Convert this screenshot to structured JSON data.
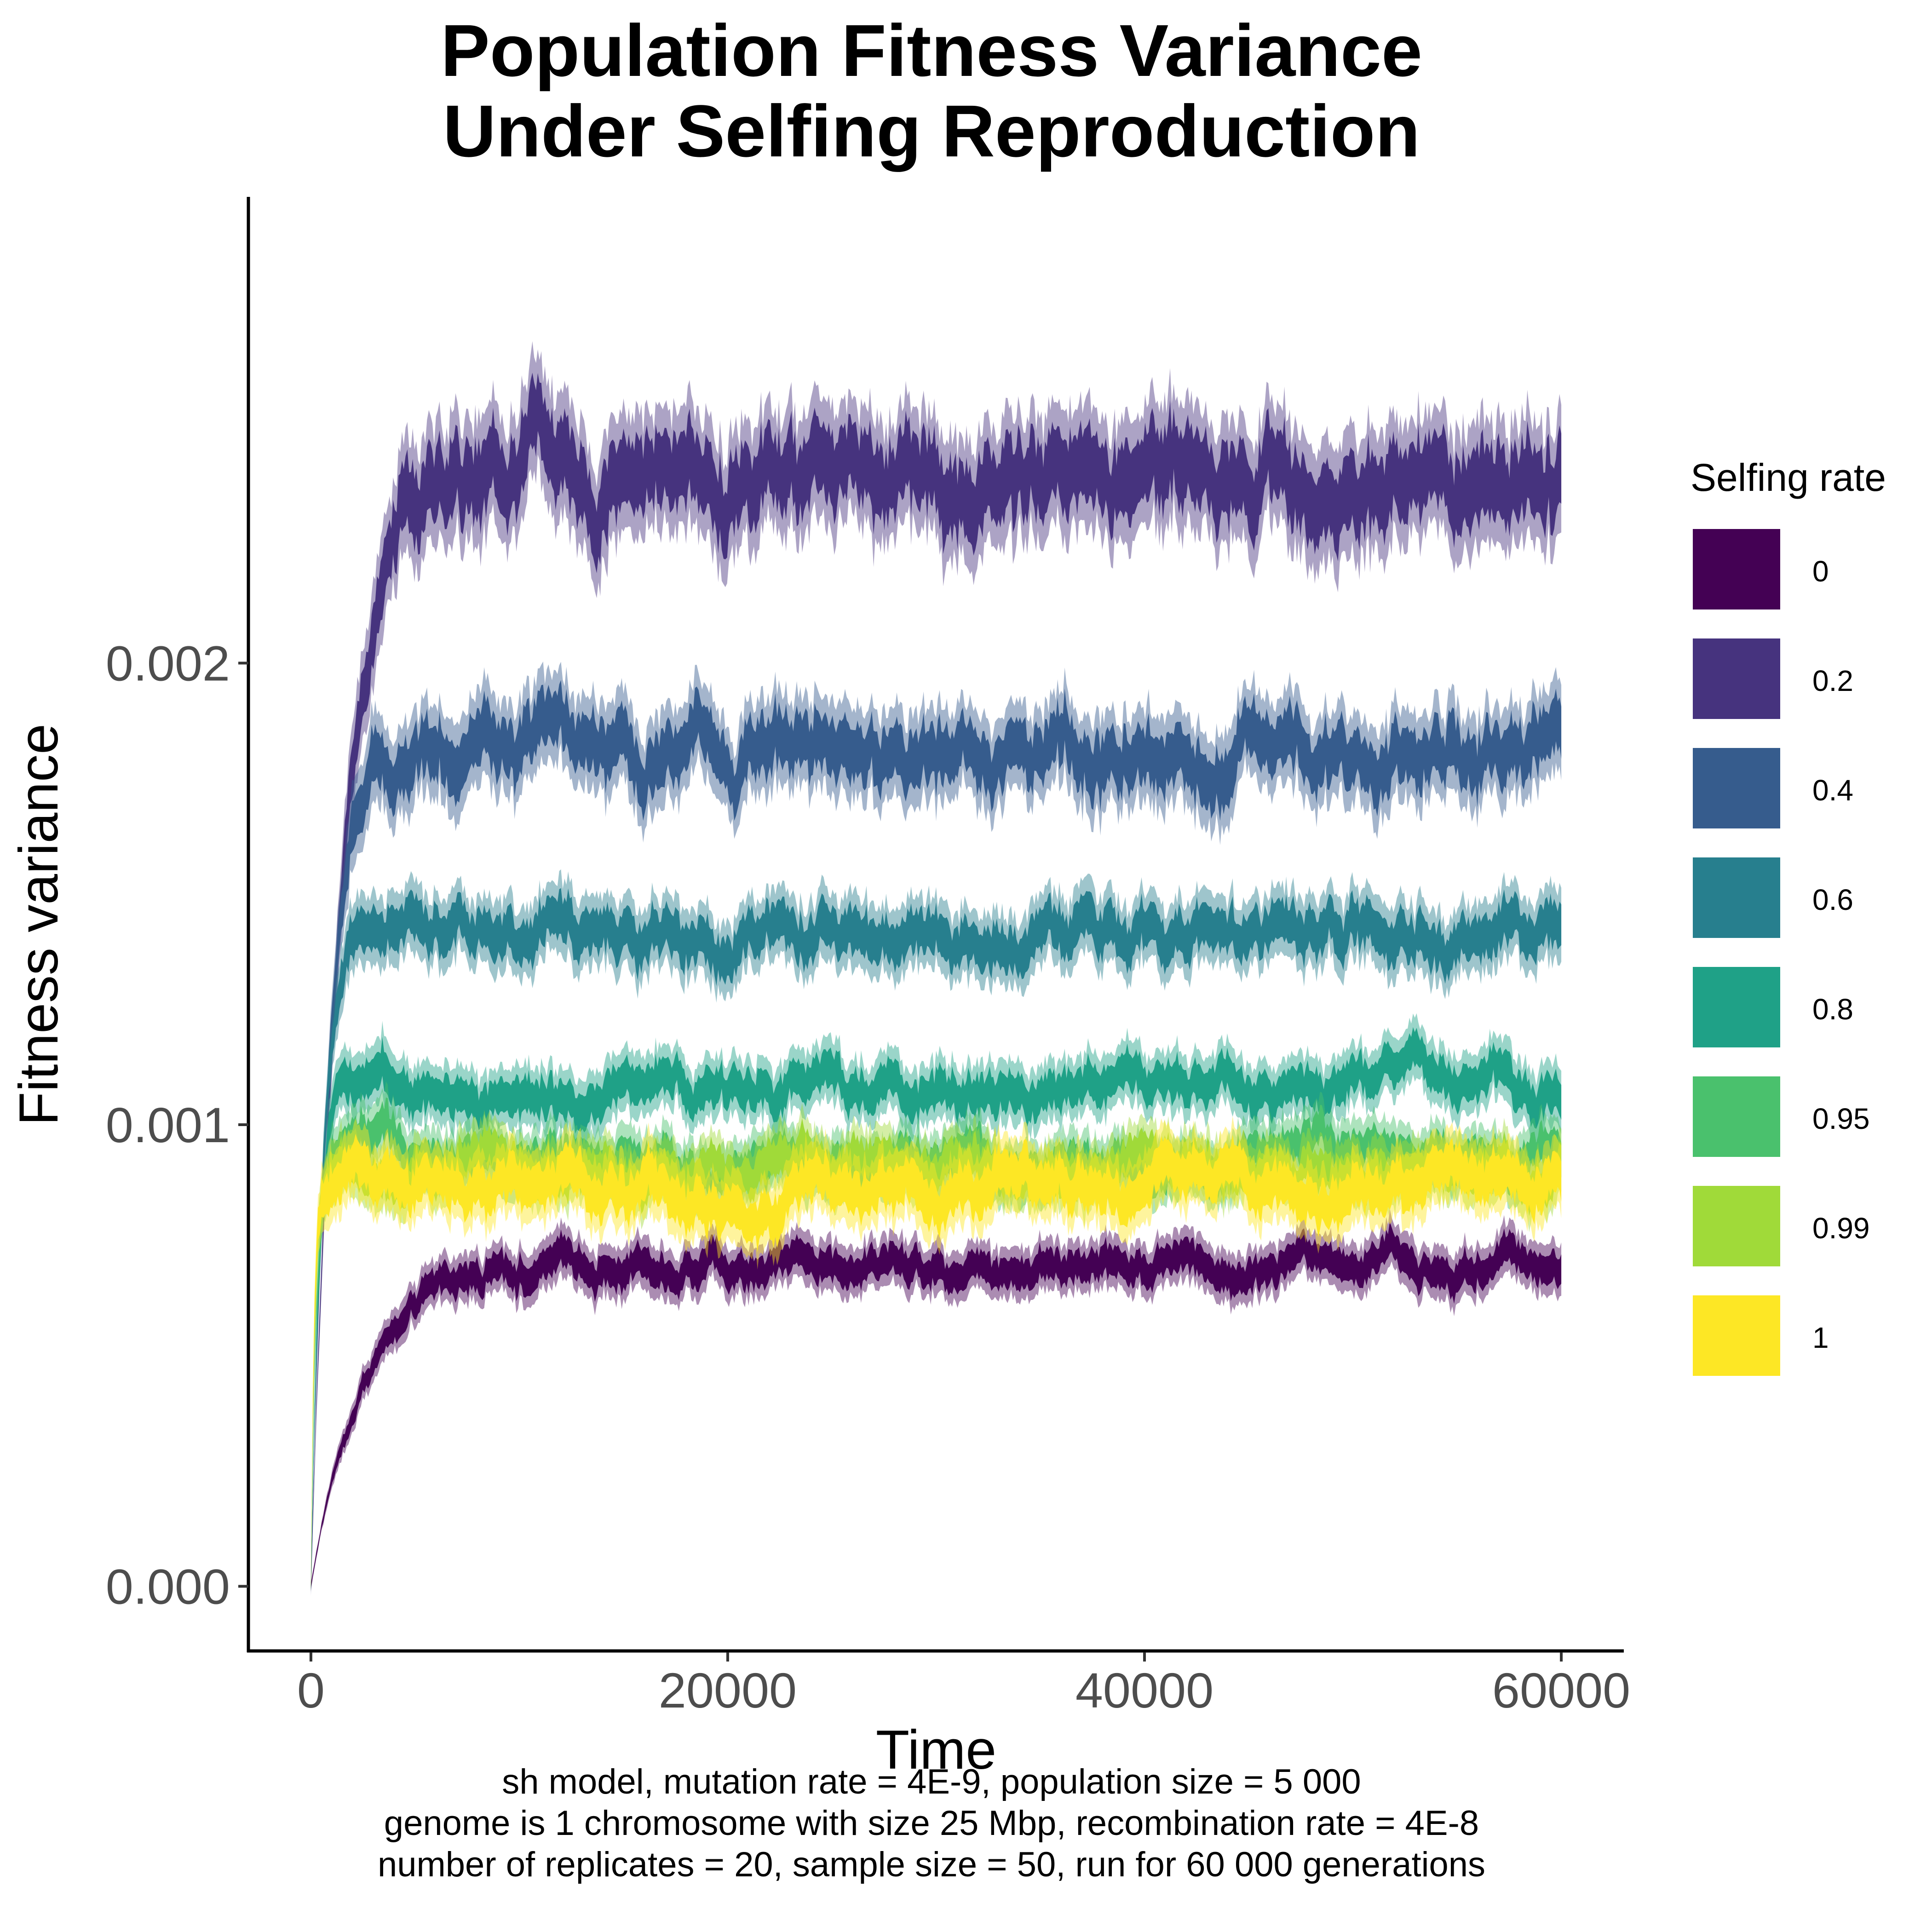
{
  "title_line1": "Population Fitness Variance",
  "title_line2": "Under Selfing Reproduction",
  "caption_line1": "sh model, mutation rate = 4E-9, population size = 5 000",
  "caption_line2": "genome is 1 chromosome with size 25 Mbp, recombination rate = 4E-8",
  "caption_line3": "number of replicates = 20, sample size = 50, run for 60 000 generations",
  "legend": {
    "title": "Selfing rate",
    "items": [
      {
        "label": "0",
        "color": "#440154"
      },
      {
        "label": "0.2",
        "color": "#46337E"
      },
      {
        "label": "0.4",
        "color": "#365C8D"
      },
      {
        "label": "0.6",
        "color": "#277F8E"
      },
      {
        "label": "0.8",
        "color": "#1FA187"
      },
      {
        "label": "0.95",
        "color": "#4AC16D"
      },
      {
        "label": "0.99",
        "color": "#A0DA39"
      },
      {
        "label": "1",
        "color": "#FDE725"
      }
    ]
  },
  "chart_data": {
    "type": "area",
    "xlabel": "Time",
    "ylabel": "Fitness variance",
    "xlim": [
      -3000,
      63000
    ],
    "ylim": [
      -0.00014,
      0.00301
    ],
    "xticks": [
      0,
      20000,
      40000,
      60000
    ],
    "xtick_labels": [
      "0",
      "20000",
      "40000",
      "60000"
    ],
    "yticks": [
      0.0,
      0.001,
      0.002
    ],
    "ytick_labels": [
      "0.000",
      "0.001",
      "0.002"
    ],
    "grid": false,
    "legend_position": "right",
    "series": [
      {
        "name": "0",
        "color": "#440154",
        "start": 0.0,
        "plateau": 0.0007,
        "band": 5e-05,
        "rise_time": 2500
      },
      {
        "name": "0.2",
        "color": "#46337E",
        "start": 0.0,
        "plateau": 0.0024,
        "band": 0.00012,
        "rise_time": 1500
      },
      {
        "name": "0.4",
        "color": "#365C8D",
        "start": 0.0,
        "plateau": 0.00181,
        "band": 9e-05,
        "rise_time": 900
      },
      {
        "name": "0.6",
        "color": "#277F8E",
        "start": 0.0,
        "plateau": 0.0014,
        "band": 7e-05,
        "rise_time": 600
      },
      {
        "name": "0.8",
        "color": "#1FA187",
        "start": 0.0,
        "plateau": 0.00109,
        "band": 6e-05,
        "rise_time": 400
      },
      {
        "name": "0.95",
        "color": "#4AC16D",
        "start": 0.0,
        "plateau": 0.00093,
        "band": 6e-05,
        "rise_time": 250
      },
      {
        "name": "0.99",
        "color": "#A0DA39",
        "start": 0.0,
        "plateau": 0.0009,
        "band": 6e-05,
        "rise_time": 200
      },
      {
        "name": "1",
        "color": "#FDE725",
        "start": 0.0,
        "plateau": 0.00087,
        "band": 7e-05,
        "rise_time": 150
      }
    ]
  }
}
